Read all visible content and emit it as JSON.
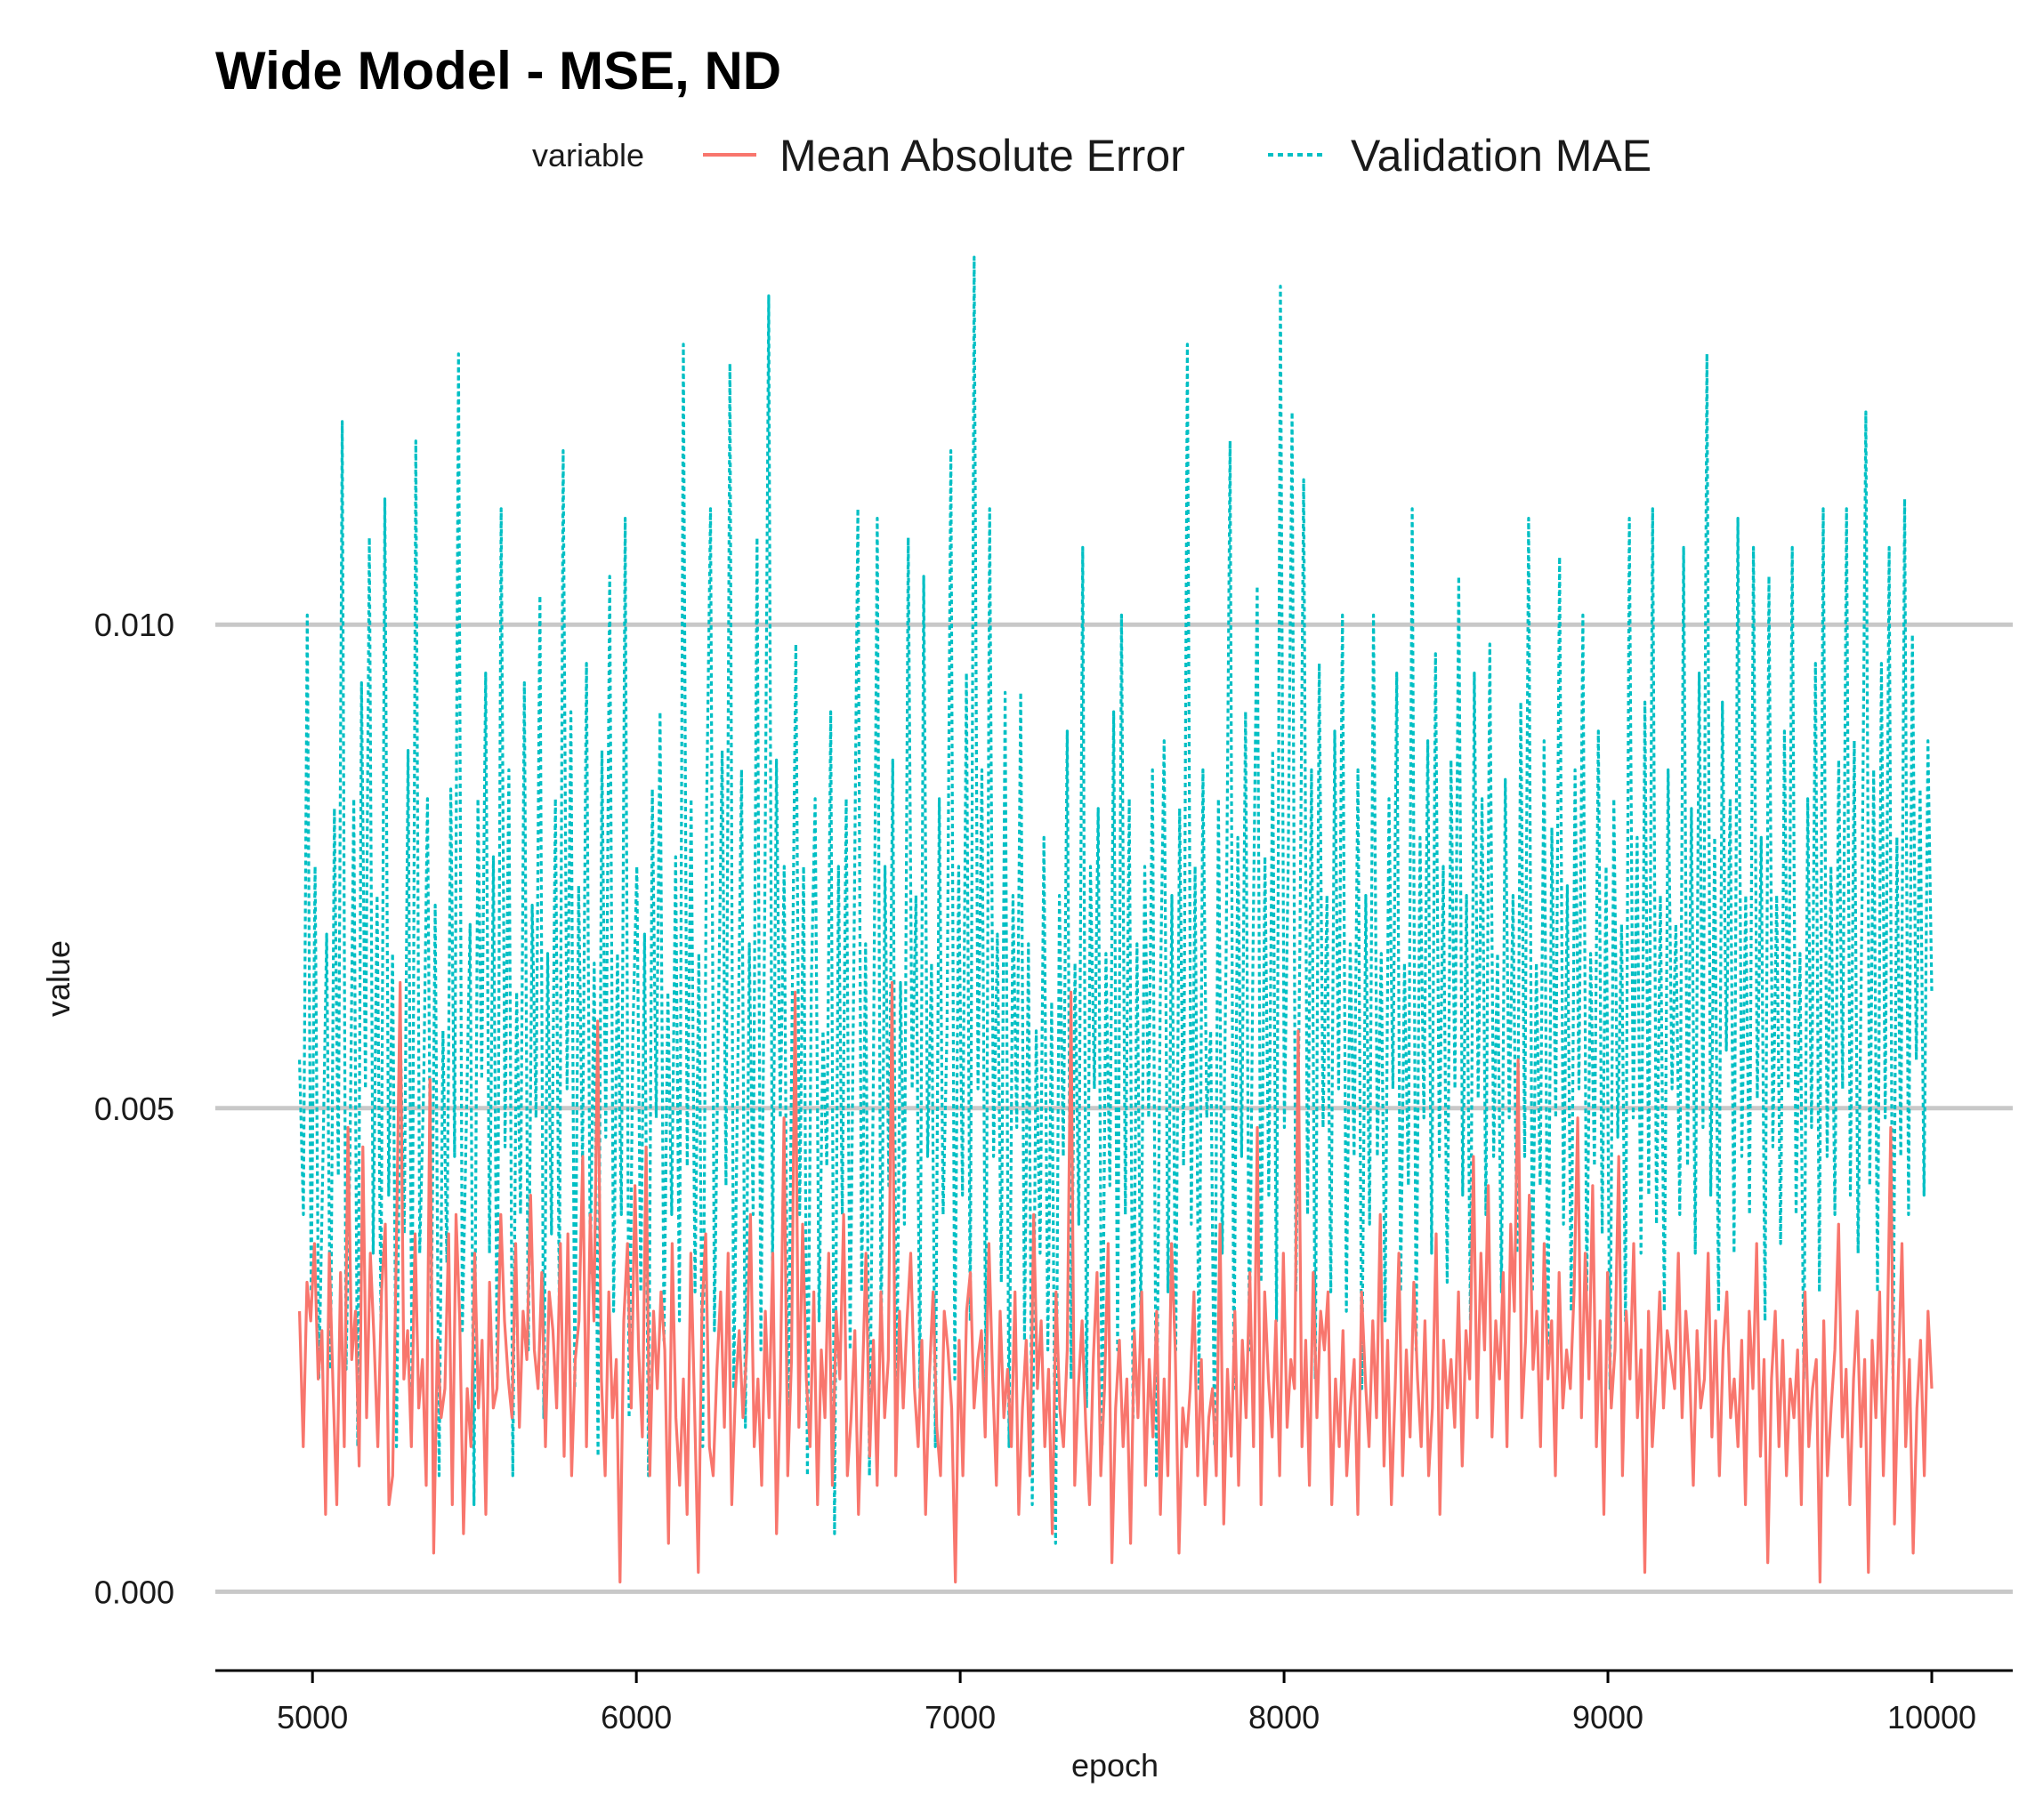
{
  "colors": {
    "mae": "#F8766D",
    "val_mae": "#00BFC4",
    "grid": "#C8C8C8",
    "axis": "#000000"
  },
  "chart_data": {
    "type": "line",
    "title": "Wide Model - MSE, ND",
    "xlabel": "epoch",
    "ylabel": "value",
    "xlim": [
      4700,
      10250
    ],
    "ylim": [
      -0.00065,
      0.0137
    ],
    "x_ticks": [
      5000,
      6000,
      7000,
      8000,
      9000,
      10000
    ],
    "x_tick_labels": [
      "5000",
      "6000",
      "7000",
      "8000",
      "9000",
      "10000"
    ],
    "y_ticks": [
      0.0,
      0.005,
      0.01
    ],
    "y_tick_labels": [
      "0.000",
      "0.005",
      "0.010"
    ],
    "grid": "horizontal major only",
    "legend": {
      "title": "variable",
      "position": "top",
      "entries": [
        "Mean Absolute Error",
        "Validation MAE"
      ]
    },
    "x_range": [
      4960,
      10000
    ],
    "series": [
      {
        "name": "Mean Absolute Error",
        "style": "solid",
        "note": "noisy per-epoch training MAE, sampled every 20 epochs",
        "x_step": 20,
        "values": [
          0.0029,
          0.0015,
          0.0032,
          0.0028,
          0.0036,
          0.0022,
          0.0027,
          0.0008,
          0.0035,
          0.0021,
          0.0009,
          0.0033,
          0.0015,
          0.0048,
          0.0024,
          0.0029,
          0.0013,
          0.0046,
          0.0018,
          0.0035,
          0.0026,
          0.0015,
          0.0031,
          0.0038,
          0.0009,
          0.0012,
          0.0036,
          0.0063,
          0.0022,
          0.0027,
          0.0015,
          0.0037,
          0.0019,
          0.0024,
          0.0011,
          0.0053,
          0.0004,
          0.0026,
          0.0018,
          0.0021,
          0.0037,
          0.0009,
          0.0039,
          0.0028,
          0.0006,
          0.0021,
          0.0015,
          0.0035,
          0.0019,
          0.0026,
          0.0008,
          0.0032,
          0.0019,
          0.0021,
          0.0039,
          0.0028,
          0.0022,
          0.0018,
          0.0036,
          0.0017,
          0.0029,
          0.0024,
          0.0041,
          0.0025,
          0.0021,
          0.0033,
          0.0015,
          0.0031,
          0.0027,
          0.0019,
          0.0036,
          0.0014,
          0.0037,
          0.0012,
          0.0024,
          0.0028,
          0.0045,
          0.0015,
          0.0039,
          0.0028,
          0.0059,
          0.0022,
          0.0012,
          0.0031,
          0.0018,
          0.0024,
          0.0001,
          0.0028,
          0.0036,
          0.0019,
          0.0042,
          0.0025,
          0.0016,
          0.0046,
          0.0012,
          0.0029,
          0.0021,
          0.0031,
          0.0025,
          0.0005,
          0.0036,
          0.0018,
          0.0011,
          0.0022,
          0.0008,
          0.0035,
          0.0019,
          0.0002,
          0.0029,
          0.0037,
          0.0015,
          0.0012,
          0.0023,
          0.0031,
          0.0017,
          0.0035,
          0.0009,
          0.0021,
          0.0027,
          0.0018,
          0.0025,
          0.0039,
          0.0015,
          0.0022,
          0.0011,
          0.0029,
          0.0018,
          0.0035,
          0.0006,
          0.0021,
          0.0049,
          0.0012,
          0.0024,
          0.0062,
          0.0017,
          0.0038,
          0.0022,
          0.0015,
          0.0031,
          0.0009,
          0.0025,
          0.0018,
          0.0035,
          0.0011,
          0.0029,
          0.0022,
          0.0039,
          0.0012,
          0.0018,
          0.0027,
          0.0008,
          0.0021,
          0.0035,
          0.0014,
          0.0026,
          0.0011,
          0.0031,
          0.0018,
          0.0024,
          0.0063,
          0.0012,
          0.0029,
          0.0019,
          0.0028,
          0.0035,
          0.0021,
          0.0015,
          0.0026,
          0.0008,
          0.0022,
          0.0031,
          0.0017,
          0.0012,
          0.0029,
          0.0025,
          0.0019,
          0.0001,
          0.0026,
          0.0012,
          0.0029,
          0.0033,
          0.0019,
          0.0024,
          0.0027,
          0.0016,
          0.0036,
          0.0022,
          0.0011,
          0.0029,
          0.0018,
          0.0023,
          0.0015,
          0.0031,
          0.0008,
          0.0019,
          0.0026,
          0.0012,
          0.0039,
          0.0021,
          0.0028,
          0.0015,
          0.0023,
          0.0006,
          0.0031,
          0.0019,
          0.0015,
          0.0025,
          0.0062,
          0.0011,
          0.0021,
          0.0028,
          0.0017,
          0.0009,
          0.0024,
          0.0033,
          0.0012,
          0.0021,
          0.0036,
          0.0003,
          0.0019,
          0.0026,
          0.0015,
          0.0022,
          0.0005,
          0.0027,
          0.0018,
          0.0031,
          0.0011,
          0.0024,
          0.0016,
          0.0029,
          0.0008,
          0.0022,
          0.0012,
          0.0036,
          0.0025,
          0.0004,
          0.0019,
          0.0015,
          0.0021,
          0.0031,
          0.0012,
          0.0024,
          0.0009,
          0.0018,
          0.0021,
          0.0012,
          0.0038,
          0.0007,
          0.0023,
          0.0014,
          0.0029,
          0.0011,
          0.0026,
          0.0018,
          0.0033,
          0.0015,
          0.0048,
          0.0009,
          0.0031,
          0.0022,
          0.0016,
          0.0028,
          0.0012,
          0.0035,
          0.0017,
          0.0024,
          0.0021,
          0.0058,
          0.0015,
          0.0026,
          0.0011,
          0.0033,
          0.0018,
          0.0029,
          0.0025,
          0.0031,
          0.0009,
          0.0022,
          0.0015,
          0.0027,
          0.0012,
          0.0019,
          0.0024,
          0.0008,
          0.0031,
          0.0022,
          0.0015,
          0.0028,
          0.0018,
          0.0039,
          0.0013,
          0.0026,
          0.0009,
          0.0021,
          0.0035,
          0.0012,
          0.0025,
          0.0016,
          0.0032,
          0.0022,
          0.0015,
          0.0028,
          0.0012,
          0.0019,
          0.0037,
          0.0008,
          0.0026,
          0.0019,
          0.0024,
          0.0017,
          0.0031,
          0.0013,
          0.0027,
          0.0022,
          0.0045,
          0.0018,
          0.0035,
          0.0025,
          0.0042,
          0.0016,
          0.0028,
          0.0022,
          0.0033,
          0.0015,
          0.0038,
          0.0029,
          0.0055,
          0.0018,
          0.0026,
          0.0041,
          0.0023,
          0.0029,
          0.0015,
          0.0036,
          0.0022,
          0.0028,
          0.0012,
          0.0033,
          0.0019,
          0.0025,
          0.0021,
          0.0031,
          0.0049,
          0.0018,
          0.0035,
          0.0022,
          0.0042,
          0.0015,
          0.0028,
          0.0008,
          0.0033,
          0.0019,
          0.0025,
          0.0045,
          0.0012,
          0.0029,
          0.0022,
          0.0036,
          0.0018,
          0.0025,
          0.0002,
          0.0029,
          0.0015,
          0.0022,
          0.0031,
          0.0019,
          0.0027,
          0.0024,
          0.0021,
          0.0035,
          0.0018,
          0.0029,
          0.0023,
          0.0011,
          0.0027,
          0.0019,
          0.0022,
          0.0035,
          0.0016,
          0.0028,
          0.0012,
          0.0025,
          0.0031,
          0.0018,
          0.0022,
          0.0015,
          0.0026,
          0.0009,
          0.0029,
          0.0021,
          0.0036,
          0.0014,
          0.0024,
          0.0003,
          0.0022,
          0.0029,
          0.0015,
          0.0026,
          0.0012,
          0.0022,
          0.0018,
          0.0025,
          0.0009,
          0.0031,
          0.0015,
          0.0021,
          0.0024,
          0.0001,
          0.0028,
          0.0012,
          0.0019,
          0.0025,
          0.0038,
          0.0016,
          0.0023,
          0.0009,
          0.0022,
          0.0029,
          0.0015,
          0.0024,
          0.0002,
          0.0026,
          0.0018,
          0.0031,
          0.0012,
          0.0025,
          0.0048,
          0.0007,
          0.0022,
          0.0036,
          0.0015,
          0.0024,
          0.0004,
          0.0019,
          0.0026,
          0.0012,
          0.0029,
          0.0021
        ]
      },
      {
        "name": "Validation MAE",
        "style": "dashed",
        "note": "noisy per-epoch validation MAE, sampled every 20 epochs",
        "x_step": 20,
        "values": [
          0.0055,
          0.0039,
          0.0101,
          0.0031,
          0.0075,
          0.0022,
          0.0044,
          0.0068,
          0.0023,
          0.0081,
          0.0043,
          0.0121,
          0.0023,
          0.0045,
          0.0082,
          0.0015,
          0.0094,
          0.0052,
          0.0109,
          0.0035,
          0.0072,
          0.0028,
          0.0113,
          0.0041,
          0.0066,
          0.0015,
          0.0058,
          0.0037,
          0.0087,
          0.0021,
          0.0119,
          0.0035,
          0.0052,
          0.0082,
          0.0029,
          0.0071,
          0.0012,
          0.0058,
          0.0034,
          0.0083,
          0.0045,
          0.0128,
          0.0027,
          0.0048,
          0.0069,
          0.0009,
          0.0082,
          0.0053,
          0.0095,
          0.0035,
          0.0076,
          0.0022,
          0.0112,
          0.0046,
          0.0085,
          0.0012,
          0.0062,
          0.0039,
          0.0094,
          0.0025,
          0.0071,
          0.0049,
          0.0103,
          0.0018,
          0.0066,
          0.0037,
          0.0082,
          0.0029,
          0.0118,
          0.0052,
          0.0091,
          0.0021,
          0.0073,
          0.0044,
          0.0096,
          0.0033,
          0.0065,
          0.0014,
          0.0087,
          0.0047,
          0.0105,
          0.0029,
          0.0066,
          0.0039,
          0.0111,
          0.0018,
          0.0058,
          0.0075,
          0.0031,
          0.0068,
          0.0012,
          0.0083,
          0.0049,
          0.0091,
          0.0026,
          0.0062,
          0.0039,
          0.0076,
          0.0028,
          0.0129,
          0.0044,
          0.0082,
          0.0031,
          0.0066,
          0.0015,
          0.0081,
          0.0112,
          0.0027,
          0.0058,
          0.0087,
          0.0042,
          0.0127,
          0.0021,
          0.0053,
          0.0085,
          0.0017,
          0.0067,
          0.0039,
          0.0109,
          0.0025,
          0.0071,
          0.0134,
          0.0033,
          0.0086,
          0.0049,
          0.0075,
          0.0015,
          0.0058,
          0.0098,
          0.0039,
          0.0075,
          0.0012,
          0.0063,
          0.0082,
          0.0028,
          0.0058,
          0.0044,
          0.0091,
          0.0006,
          0.0075,
          0.0039,
          0.0082,
          0.0025,
          0.0066,
          0.0112,
          0.0031,
          0.0067,
          0.0012,
          0.0053,
          0.0111,
          0.0025,
          0.0075,
          0.0042,
          0.0086,
          0.0018,
          0.0063,
          0.0038,
          0.0109,
          0.0052,
          0.0072,
          0.0021,
          0.0105,
          0.0045,
          0.0065,
          0.0015,
          0.0082,
          0.0039,
          0.0058,
          0.0118,
          0.0022,
          0.0075,
          0.0041,
          0.0095,
          0.0028,
          0.0138,
          0.0052,
          0.0085,
          0.0021,
          0.0112,
          0.0045,
          0.0068,
          0.0032,
          0.0093,
          0.0015,
          0.0072,
          0.0048,
          0.0093,
          0.0026,
          0.0067,
          0.0009,
          0.0058,
          0.0035,
          0.0078,
          0.0025,
          0.0061,
          0.0005,
          0.0072,
          0.0045,
          0.0089,
          0.0022,
          0.0065,
          0.0038,
          0.0108,
          0.0019,
          0.0075,
          0.0052,
          0.0081,
          0.0015,
          0.0066,
          0.0042,
          0.0091,
          0.0025,
          0.0101,
          0.0039,
          0.0082,
          0.0018,
          0.0067,
          0.0028,
          0.0075,
          0.0049,
          0.0085,
          0.0012,
          0.0061,
          0.0088,
          0.0031,
          0.0072,
          0.0025,
          0.0081,
          0.0044,
          0.0129,
          0.0038,
          0.0075,
          0.0021,
          0.0085,
          0.0049,
          0.0058,
          0.0015,
          0.0082,
          0.0035,
          0.0066,
          0.0119,
          0.0021,
          0.0078,
          0.0045,
          0.0091,
          0.0025,
          0.0069,
          0.0104,
          0.0032,
          0.0076,
          0.0041,
          0.0087,
          0.0028,
          0.0135,
          0.0048,
          0.0075,
          0.0122,
          0.0031,
          0.0066,
          0.0115,
          0.0039,
          0.0085,
          0.0022,
          0.0096,
          0.0048,
          0.0072,
          0.0031,
          0.0089,
          0.0052,
          0.0101,
          0.0029,
          0.0067,
          0.0045,
          0.0085,
          0.0021,
          0.0072,
          0.0038,
          0.0101,
          0.0045,
          0.0066,
          0.0028,
          0.0082,
          0.0052,
          0.0095,
          0.0031,
          0.0065,
          0.0042,
          0.0112,
          0.0025,
          0.0078,
          0.0049,
          0.0088,
          0.0035,
          0.0097,
          0.0045,
          0.0075,
          0.0032,
          0.0086,
          0.0052,
          0.0105,
          0.0041,
          0.0072,
          0.0028,
          0.0095,
          0.0051,
          0.0082,
          0.0039,
          0.0098,
          0.0045,
          0.0066,
          0.0031,
          0.0084,
          0.0049,
          0.0072,
          0.0035,
          0.0092,
          0.0045,
          0.0111,
          0.0031,
          0.0065,
          0.0042,
          0.0088,
          0.0025,
          0.0079,
          0.0049,
          0.0107,
          0.0038,
          0.0073,
          0.0029,
          0.0085,
          0.0052,
          0.0101,
          0.0031,
          0.0066,
          0.0044,
          0.0089,
          0.0037,
          0.0075,
          0.0021,
          0.0082,
          0.0047,
          0.0069,
          0.0028,
          0.0111,
          0.0049,
          0.0078,
          0.0035,
          0.0092,
          0.0041,
          0.0112,
          0.0038,
          0.0072,
          0.0029,
          0.0085,
          0.0052,
          0.0069,
          0.0039,
          0.0108,
          0.0044,
          0.0081,
          0.0035,
          0.0095,
          0.0048,
          0.0128,
          0.0041,
          0.0078,
          0.0029,
          0.0092,
          0.0056,
          0.0082,
          0.0035,
          0.0111,
          0.0045,
          0.0072,
          0.0039,
          0.0108,
          0.0051,
          0.0078,
          0.0028,
          0.0105,
          0.0046,
          0.0072,
          0.0036,
          0.0089,
          0.0052,
          0.0108,
          0.0039,
          0.0066,
          0.0022,
          0.0082,
          0.0048,
          0.0096,
          0.0031,
          0.0112,
          0.0045,
          0.0075,
          0.0039,
          0.0086,
          0.0052,
          0.0112,
          0.0041,
          0.0088,
          0.0035,
          0.0071,
          0.0122,
          0.0042,
          0.0085,
          0.0031,
          0.0096,
          0.0049,
          0.0108,
          0.0022,
          0.0078,
          0.0045,
          0.0113,
          0.0039,
          0.0099,
          0.0055,
          0.0083,
          0.0041,
          0.0088,
          0.0062
        ]
      }
    ]
  }
}
